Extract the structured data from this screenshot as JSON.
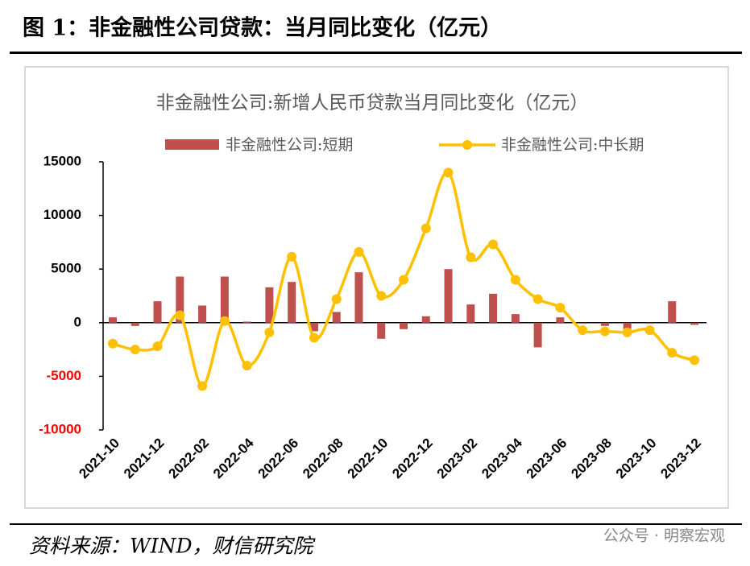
{
  "header": {
    "title": "图 1：非金融性公司贷款：当月同比变化（亿元）"
  },
  "chart_data": {
    "type": "bar-line",
    "title": "非金融性公司:新增人民币贷款当月同比变化（亿元）",
    "categories": [
      "2021-10",
      null,
      "2021-12",
      null,
      "2022-02",
      null,
      "2022-04",
      null,
      "2022-06",
      null,
      "2022-08",
      null,
      "2022-10",
      null,
      "2022-12",
      null,
      "2023-02",
      null,
      "2023-04",
      null,
      "2023-06",
      null,
      "2023-08",
      null,
      "2023-10",
      null,
      "2023-12"
    ],
    "series": [
      {
        "name": "非金融性公司:短期",
        "type": "bar",
        "color": "#c0504d",
        "values": [
          500,
          -300,
          2000,
          4300,
          1600,
          4300,
          100,
          3300,
          3800,
          -800,
          1000,
          4700,
          -1500,
          -600,
          600,
          5000,
          1700,
          2700,
          800,
          -2300,
          500,
          -100,
          -300,
          -600,
          -100,
          2000,
          -200
        ]
      },
      {
        "name": "非金融性公司:中长期",
        "type": "line",
        "color": "#ffc000",
        "values": [
          -1950,
          -2500,
          -2200,
          700,
          -5900,
          150,
          -4000,
          -900,
          6150,
          -1400,
          2200,
          6600,
          2500,
          4000,
          8800,
          14000,
          6100,
          7300,
          4000,
          2200,
          1400,
          -700,
          -800,
          -900,
          -700,
          -2800,
          -3500
        ]
      }
    ],
    "ylim": [
      -10000,
      15000
    ],
    "yticks": [
      -10000,
      -5000,
      0,
      5000,
      10000,
      15000
    ],
    "negative_tick_color": "#ff0000",
    "grid": false,
    "legend": "top"
  },
  "footer": {
    "source": "资料来源：WIND，财信研究院",
    "watermark": "公众号 · 明察宏观"
  }
}
